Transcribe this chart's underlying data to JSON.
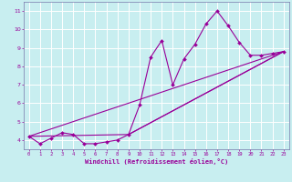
{
  "background_color": "#c8eef0",
  "grid_color": "#ffffff",
  "line_color": "#990099",
  "marker_color": "#990099",
  "xlabel": "Windchill (Refroidissement éolien,°C)",
  "xlabel_color": "#990099",
  "tick_color": "#990099",
  "spine_color": "#7777aa",
  "ylim": [
    3.5,
    11.5
  ],
  "xlim": [
    -0.5,
    23.5
  ],
  "yticks": [
    4,
    5,
    6,
    7,
    8,
    9,
    10,
    11
  ],
  "xticks": [
    0,
    1,
    2,
    3,
    4,
    5,
    6,
    7,
    8,
    9,
    10,
    11,
    12,
    13,
    14,
    15,
    16,
    17,
    18,
    19,
    20,
    21,
    22,
    23
  ],
  "series": [
    {
      "x": [
        0,
        1,
        2,
        3,
        4,
        5,
        6,
        7,
        8,
        9,
        10,
        11,
        12,
        13,
        14,
        15,
        16,
        17,
        18,
        19,
        20,
        21,
        22,
        23
      ],
      "y": [
        4.2,
        3.8,
        4.1,
        4.4,
        4.3,
        3.8,
        3.8,
        3.9,
        4.0,
        4.3,
        5.9,
        8.5,
        9.4,
        7.0,
        8.4,
        9.2,
        10.3,
        11.0,
        10.2,
        9.3,
        8.6,
        8.6,
        8.7,
        8.8
      ],
      "marker": "D",
      "markersize": 2.0,
      "linewidth": 0.8
    },
    {
      "x": [
        0,
        23
      ],
      "y": [
        4.2,
        8.8
      ],
      "marker": null,
      "linewidth": 0.8
    },
    {
      "x": [
        0,
        9,
        23
      ],
      "y": [
        4.2,
        4.3,
        8.8
      ],
      "marker": null,
      "linewidth": 0.8
    },
    {
      "x": [
        9,
        23
      ],
      "y": [
        4.3,
        8.8
      ],
      "marker": null,
      "linewidth": 0.8
    }
  ]
}
